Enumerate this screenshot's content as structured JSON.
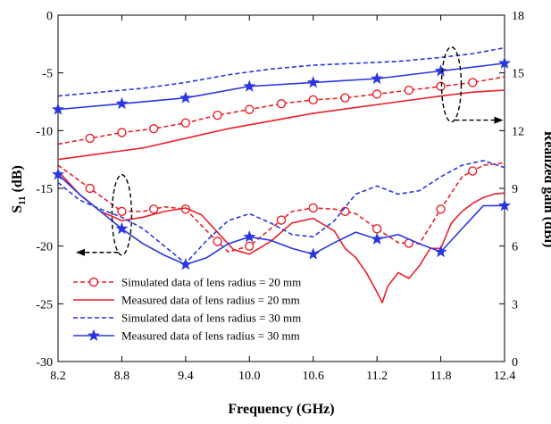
{
  "chart_data": {
    "type": "line",
    "title": "",
    "xlabel": "Frequency (GHz)",
    "ylabel_left": "S11 (dB)",
    "ylabel_left_main": "S",
    "ylabel_left_sub": "11",
    "ylabel_left_unit": " (dB)",
    "ylabel_right": "Realized gain (dBi)",
    "xlim": [
      8.2,
      12.4
    ],
    "ylim_left": [
      -30,
      0
    ],
    "ylim_right": [
      0,
      18
    ],
    "x_ticks": [
      "8.2",
      "8.8",
      "9.4",
      "10.0",
      "10.6",
      "11.2",
      "11.8",
      "12.4"
    ],
    "y_left_ticks": [
      "0",
      "-5",
      "-10",
      "-15",
      "-20",
      "-25",
      "-30"
    ],
    "y_right_ticks": [
      "18",
      "15",
      "12",
      "9",
      "6",
      "3",
      "0"
    ],
    "grid": false,
    "legend_position": "bottom-left",
    "legend": [
      {
        "label": "Simulated data of lens radius = 20 mm",
        "color": "#e8202a",
        "dash": "dashed",
        "marker": "circle"
      },
      {
        "label": "Measured data of lens radius = 20 mm",
        "color": "#e8202a",
        "dash": "solid",
        "marker": "none"
      },
      {
        "label": "Simulated data of lens radius = 30 mm",
        "color": "#2a36e0",
        "dash": "dashed",
        "marker": "none"
      },
      {
        "label": "Measured data of lens radius = 30 mm",
        "color": "#2a36e0",
        "dash": "solid",
        "marker": "star"
      }
    ],
    "annotations": [
      {
        "type": "ellipse-arrow",
        "at_x": 11.9,
        "axis": "right",
        "direction": "right"
      },
      {
        "type": "ellipse-arrow",
        "at_x": 8.8,
        "axis": "left",
        "direction": "left"
      }
    ],
    "series": [
      {
        "legend_index": 0,
        "axis": "left",
        "color": "#e8202a",
        "dash": "dashed",
        "marker": "circle",
        "x": [
          8.2,
          8.5,
          8.8,
          9.0,
          9.2,
          9.4,
          9.6,
          9.8,
          10.0,
          10.2,
          10.4,
          10.6,
          10.8,
          11.0,
          11.2,
          11.4,
          11.6,
          11.8,
          12.0,
          12.2,
          12.4
        ],
        "y": [
          -13.0,
          -15.0,
          -17.0,
          -17.0,
          -16.6,
          -16.8,
          -18.7,
          -20.5,
          -20.0,
          -18.5,
          -17.0,
          -16.7,
          -16.8,
          -17.2,
          -18.5,
          -19.7,
          -19.8,
          -16.8,
          -14.0,
          -13.0,
          -12.8
        ],
        "marker_x": [
          8.5,
          8.8,
          9.1,
          9.4,
          9.7,
          10.0,
          10.3,
          10.6,
          10.9,
          11.2,
          11.5,
          11.8,
          12.1
        ]
      },
      {
        "legend_index": 1,
        "axis": "left",
        "color": "#e8202a",
        "dash": "solid",
        "marker": "none",
        "x": [
          8.2,
          8.4,
          8.6,
          8.8,
          9.0,
          9.2,
          9.4,
          9.55,
          9.7,
          9.85,
          10.0,
          10.2,
          10.4,
          10.6,
          10.8,
          10.9,
          11.0,
          11.1,
          11.2,
          11.25,
          11.3,
          11.4,
          11.5,
          11.6,
          11.7,
          11.8,
          11.9,
          12.0,
          12.1,
          12.2,
          12.3,
          12.4
        ],
        "y": [
          -13.5,
          -15.5,
          -17.0,
          -17.8,
          -17.5,
          -17.0,
          -16.7,
          -17.3,
          -18.8,
          -20.3,
          -20.7,
          -19.6,
          -18.0,
          -17.6,
          -18.7,
          -20.2,
          -21.0,
          -22.3,
          -24.0,
          -24.9,
          -23.5,
          -22.3,
          -22.8,
          -21.7,
          -20.2,
          -20.2,
          -18.0,
          -17.0,
          -16.3,
          -15.8,
          -15.5,
          -15.4
        ]
      },
      {
        "legend_index": 2,
        "axis": "left",
        "color": "#2a36e0",
        "dash": "dashed",
        "marker": "none",
        "x": [
          8.2,
          8.4,
          8.6,
          8.8,
          9.0,
          9.2,
          9.4,
          9.6,
          9.8,
          10.0,
          10.2,
          10.4,
          10.6,
          10.8,
          11.0,
          11.2,
          11.4,
          11.6,
          11.8,
          12.0,
          12.2,
          12.4
        ],
        "y": [
          -14.5,
          -16.0,
          -16.8,
          -17.5,
          -18.5,
          -20.0,
          -21.5,
          -19.5,
          -17.8,
          -17.2,
          -18.0,
          -19.0,
          -19.2,
          -17.8,
          -15.5,
          -14.8,
          -15.5,
          -15.2,
          -14.0,
          -13.0,
          -12.6,
          -13.2
        ]
      },
      {
        "legend_index": 3,
        "axis": "left",
        "color": "#2a36e0",
        "dash": "solid",
        "marker": "star",
        "x": [
          8.2,
          8.4,
          8.6,
          8.8,
          9.0,
          9.2,
          9.4,
          9.6,
          9.8,
          10.0,
          10.2,
          10.4,
          10.6,
          10.8,
          11.0,
          11.2,
          11.4,
          11.6,
          11.8,
          12.0,
          12.2,
          12.4
        ],
        "y": [
          -13.8,
          -15.5,
          -17.0,
          -18.5,
          -19.8,
          -20.8,
          -21.6,
          -21.0,
          -19.8,
          -19.2,
          -19.5,
          -20.2,
          -20.7,
          -19.7,
          -18.8,
          -19.4,
          -19.0,
          -19.8,
          -20.5,
          -18.5,
          -16.5,
          -16.5
        ],
        "marker_x": [
          8.2,
          8.8,
          9.4,
          10.0,
          10.6,
          11.2,
          11.8,
          12.4
        ]
      },
      {
        "legend_index": 0,
        "axis": "right",
        "color": "#e8202a",
        "dash": "dashed",
        "marker": "circle",
        "x": [
          8.2,
          8.5,
          8.8,
          9.1,
          9.4,
          9.7,
          10.0,
          10.3,
          10.6,
          10.9,
          11.2,
          11.5,
          11.8,
          12.1,
          12.4
        ],
        "y": [
          11.3,
          11.6,
          11.9,
          12.1,
          12.4,
          12.8,
          13.1,
          13.4,
          13.6,
          13.7,
          13.9,
          14.1,
          14.3,
          14.5,
          14.8
        ],
        "marker_x": [
          8.5,
          8.8,
          9.1,
          9.4,
          9.7,
          10.0,
          10.3,
          10.6,
          10.9,
          11.2,
          11.5,
          11.8,
          12.1
        ]
      },
      {
        "legend_index": 1,
        "axis": "right",
        "color": "#e8202a",
        "dash": "solid",
        "marker": "none",
        "x": [
          8.2,
          8.6,
          9.0,
          9.4,
          9.8,
          10.2,
          10.6,
          11.0,
          11.4,
          11.8,
          12.1,
          12.4
        ],
        "y": [
          10.5,
          10.8,
          11.1,
          11.6,
          12.1,
          12.5,
          12.9,
          13.2,
          13.5,
          13.8,
          14.0,
          14.1
        ]
      },
      {
        "legend_index": 2,
        "axis": "right",
        "color": "#2a36e0",
        "dash": "dashed",
        "marker": "none",
        "x": [
          8.2,
          8.6,
          9.0,
          9.4,
          9.8,
          10.2,
          10.6,
          11.0,
          11.4,
          11.8,
          12.1,
          12.4
        ],
        "y": [
          13.8,
          14.0,
          14.2,
          14.5,
          14.9,
          15.2,
          15.4,
          15.5,
          15.6,
          15.8,
          16.0,
          16.3
        ]
      },
      {
        "legend_index": 3,
        "axis": "right",
        "color": "#2a36e0",
        "dash": "solid",
        "marker": "star",
        "x": [
          8.2,
          8.8,
          9.4,
          10.0,
          10.6,
          11.2,
          11.8,
          12.4
        ],
        "y": [
          13.1,
          13.4,
          13.7,
          14.3,
          14.5,
          14.7,
          15.1,
          15.5
        ],
        "marker_x": [
          8.2,
          8.8,
          9.4,
          10.0,
          10.6,
          11.2,
          11.8,
          12.4
        ]
      }
    ]
  }
}
